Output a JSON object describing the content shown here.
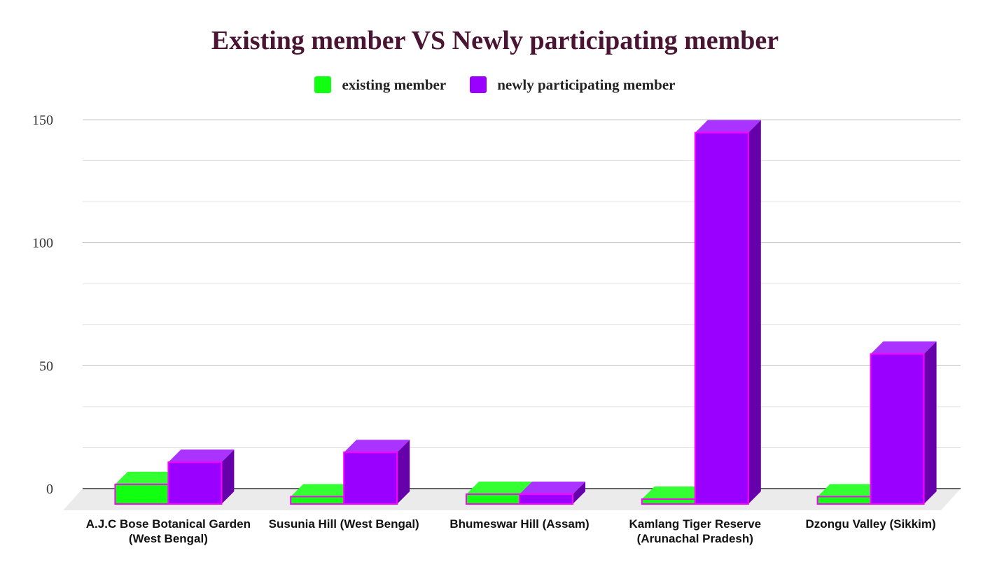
{
  "chart_data": {
    "type": "bar",
    "title": "Existing member VS Newly participating member",
    "xlabel": "",
    "ylabel": "",
    "categories": [
      "A.J.C Bose Botanical Garden (West Bengal)",
      "Susunia Hill (West Bengal)",
      "Bhumeswar Hill (Assam)",
      "Kamlang Tiger Reserve (Arunachal Pradesh)",
      "Dzongu Valley (Sikkim)"
    ],
    "series": [
      {
        "name": "existing member",
        "color": "#11ff11",
        "values": [
          8,
          3,
          4,
          2,
          3
        ]
      },
      {
        "name": "newly participating member",
        "color": "#9900ff",
        "values": [
          17,
          21,
          4,
          151,
          61
        ]
      }
    ],
    "ylim": [
      0,
      150
    ],
    "yticks": [
      "0",
      "50",
      "100",
      "150"
    ],
    "grid": true,
    "legend_position": "top-center",
    "style": "3d"
  }
}
